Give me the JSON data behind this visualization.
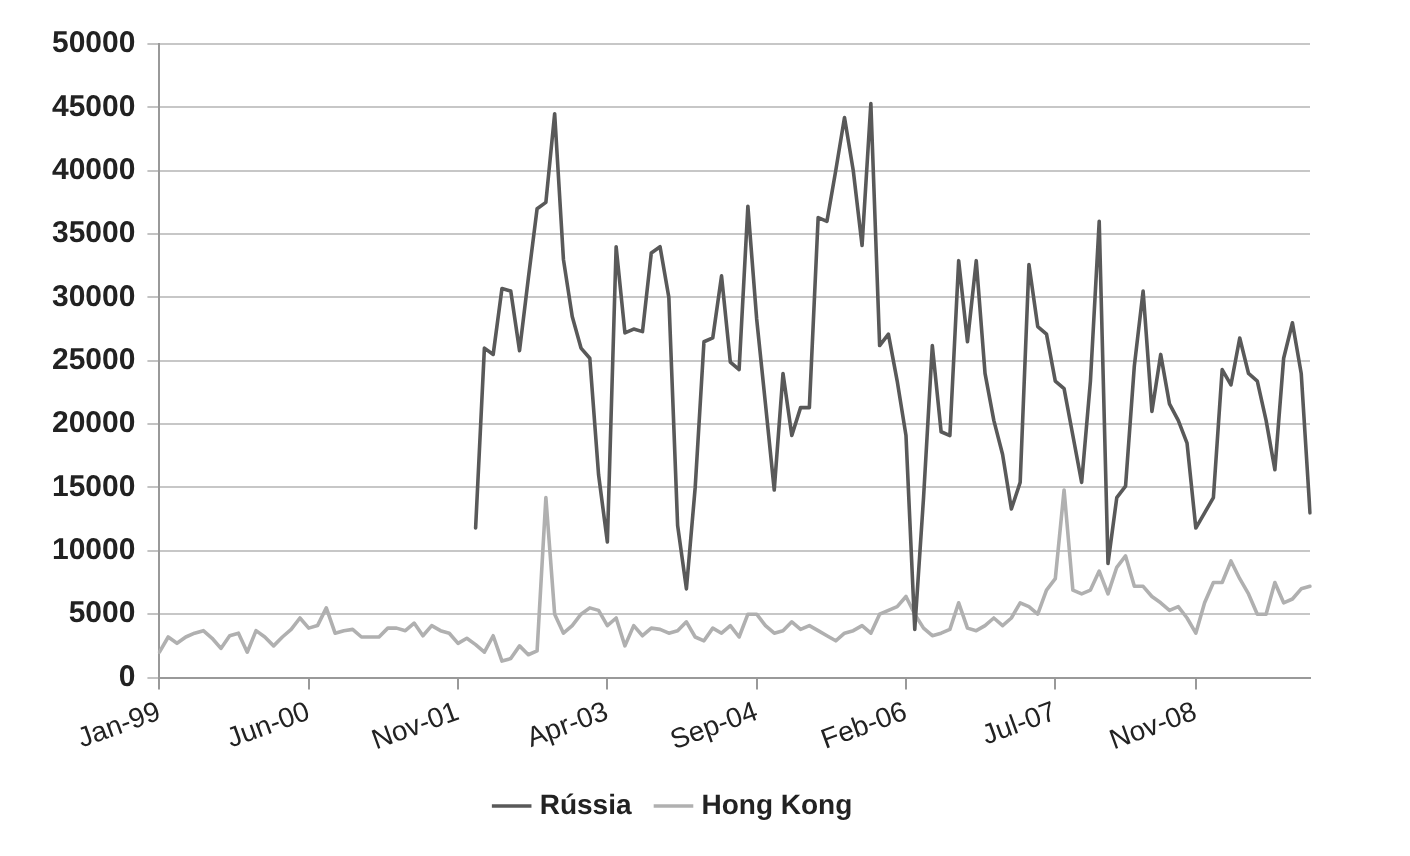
{
  "chart_data": {
    "type": "line",
    "categories": [
      "Jan-99",
      null,
      null,
      null,
      null,
      null,
      null,
      null,
      null,
      null,
      null,
      null,
      null,
      null,
      null,
      null,
      null,
      "Jun-00",
      null,
      null,
      null,
      null,
      null,
      null,
      null,
      null,
      null,
      null,
      null,
      null,
      null,
      null,
      null,
      null,
      "Nov-01",
      null,
      null,
      null,
      null,
      null,
      null,
      null,
      null,
      null,
      null,
      null,
      null,
      null,
      null,
      null,
      null,
      "Apr-03",
      null,
      null,
      null,
      null,
      null,
      null,
      null,
      null,
      null,
      null,
      null,
      null,
      null,
      null,
      null,
      null,
      "Sep-04",
      null,
      null,
      null,
      null,
      null,
      null,
      null,
      null,
      null,
      null,
      null,
      null,
      null,
      null,
      null,
      null,
      "Feb-06",
      null,
      null,
      null,
      null,
      null,
      null,
      null,
      null,
      null,
      null,
      null,
      null,
      null,
      null,
      null,
      null,
      "Jul-07",
      null,
      null,
      null,
      null,
      null,
      null,
      null,
      null,
      null,
      null,
      null,
      null,
      null,
      null,
      null,
      "Nov-08",
      null,
      null,
      null,
      null,
      null,
      null,
      null,
      null,
      null,
      null,
      null,
      null,
      null
    ],
    "series": [
      {
        "name": "Rússia",
        "color": "#595959",
        "values": [
          null,
          null,
          null,
          null,
          null,
          null,
          null,
          null,
          null,
          null,
          null,
          null,
          null,
          null,
          null,
          null,
          null,
          null,
          null,
          null,
          null,
          null,
          null,
          null,
          null,
          null,
          null,
          null,
          null,
          null,
          null,
          null,
          null,
          null,
          null,
          null,
          11800,
          26000,
          25500,
          30700,
          30500,
          25800,
          31500,
          37000,
          37500,
          44500,
          33000,
          28500,
          26000,
          25200,
          16000,
          10700,
          34000,
          27200,
          27500,
          27300,
          33500,
          34000,
          30000,
          12000,
          7000,
          15000,
          26500,
          26800,
          31700,
          24900,
          24300,
          37200,
          28300,
          21600,
          14800,
          24000,
          19100,
          21300,
          21300,
          36300,
          36000,
          40000,
          44200,
          40000,
          34100,
          45300,
          26200,
          27100,
          23400,
          19100,
          3800,
          14200,
          26200,
          19400,
          19100,
          32900,
          26500,
          32900,
          24000,
          20300,
          17600,
          13300,
          15400,
          32600,
          27700,
          27100,
          23400,
          22800,
          19100,
          15400,
          23400,
          36000,
          9000,
          14200,
          15100,
          24600,
          30500,
          21000,
          25500,
          21600,
          20300,
          18500,
          11800,
          13000,
          14200,
          24300,
          23100,
          26800,
          24000,
          23400,
          20300,
          16400,
          25200,
          28000,
          24000,
          13000
        ]
      },
      {
        "name": "Hong Kong",
        "color": "#b0b0b0",
        "values": [
          2000,
          3200,
          2700,
          3200,
          3500,
          3700,
          3100,
          2300,
          3300,
          3500,
          2000,
          3700,
          3200,
          2500,
          3200,
          3800,
          4700,
          3900,
          4100,
          5500,
          3500,
          3700,
          3800,
          3200,
          3200,
          3200,
          3900,
          3900,
          3700,
          4300,
          3300,
          4100,
          3700,
          3500,
          2700,
          3100,
          2600,
          2000,
          3300,
          1300,
          1500,
          2500,
          1800,
          2100,
          14200,
          5000,
          3500,
          4100,
          5000,
          5500,
          5300,
          4100,
          4700,
          2500,
          4100,
          3300,
          3900,
          3800,
          3500,
          3700,
          4400,
          3200,
          2900,
          3900,
          3500,
          4100,
          3200,
          5000,
          5000,
          4100,
          3500,
          3700,
          4400,
          3800,
          4100,
          3700,
          3300,
          2900,
          3500,
          3700,
          4100,
          3500,
          5000,
          5300,
          5600,
          6400,
          5000,
          3900,
          3300,
          3500,
          3800,
          5900,
          3900,
          3700,
          4100,
          4700,
          4100,
          4700,
          5900,
          5600,
          5000,
          6900,
          7800,
          14800,
          6900,
          6600,
          6900,
          8400,
          6600,
          8700,
          9600,
          7200,
          7200,
          6400,
          5900,
          5300,
          5600,
          4700,
          3500,
          5900,
          7500,
          7500,
          9200,
          7800,
          6600,
          5000,
          5000,
          7500,
          5900,
          6200,
          7000,
          7200
        ]
      }
    ],
    "ylim": [
      0,
      50000
    ],
    "yticks": [
      0,
      5000,
      10000,
      15000,
      20000,
      25000,
      30000,
      35000,
      40000,
      45000,
      50000
    ],
    "grid": "y",
    "legend": "bottom",
    "marker": "none",
    "line_style": "solid"
  }
}
